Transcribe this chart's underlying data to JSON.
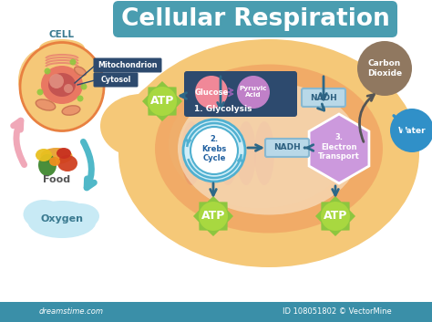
{
  "title": "Cellular Respiration",
  "title_bg": "#4a9db0",
  "title_color": "white",
  "title_fontsize": 19,
  "bg_color": "white",
  "cell_label": "CELL",
  "food_label": "Food",
  "oxygen_label": "Oxygen",
  "mito_label": "Mitochondrion",
  "cyto_label": "Cytosol",
  "atp_color": "#8dc63f",
  "atp_color2": "#a8d840",
  "atp_text": "ATP",
  "glucose_color": "#f08898",
  "glucose_text": "Glucose",
  "pyruvic_color": "#c080c8",
  "pyruvic_text": "Pyruvic\nAcid",
  "glycolysis_color": "#2d4a6e",
  "glycolysis_text": "1. Glycolysis",
  "nadh_color": "#b8d8e8",
  "nadh_text": "NADH",
  "nadh_border": "#88b8d0",
  "krebs_color": "#70c8e0",
  "krebs_text": "2.\nKrebs\nCycle",
  "electron_color": "#cc99dd",
  "electron_text": "3.\nElectron\nTransport",
  "co2_color": "#907860",
  "co2_text": "Carbon\nDioxide",
  "water_color": "#3090c8",
  "water_text": "Water",
  "mito_outer_color": "#f5c878",
  "mito_inner_color": "#f0a060",
  "mito_cristae_color": "#e89060",
  "arrow_color": "#2d6888",
  "arrow_pink": "#f0a8b8",
  "arrow_teal": "#50b8c8",
  "cell_body_color": "#f5c878",
  "label_bg": "#2d4a6e",
  "watermark": "dreamstime.com",
  "watermark2": "VectorMine",
  "id_text": "ID 108051802",
  "bar_color": "#3a8fa8"
}
